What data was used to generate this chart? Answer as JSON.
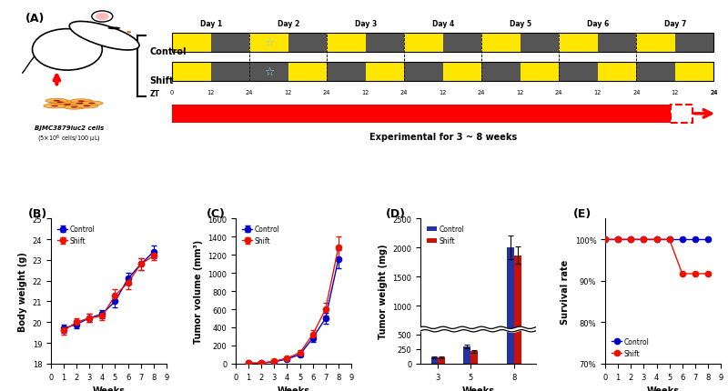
{
  "panel_A": {
    "days": [
      "Day 1",
      "Day 2",
      "Day 3",
      "Day 4",
      "Day 5",
      "Day 6",
      "Day 7"
    ],
    "exp_label": "Experimental for 3 ~ 8 weeks",
    "cell_label": "BJMC3879luc2 cells\n(5×10⁶ cells/100 μL)"
  },
  "panel_B": {
    "weeks_control": [
      1,
      2,
      3,
      4,
      5,
      6,
      7,
      8
    ],
    "control": [
      19.7,
      19.9,
      20.2,
      20.4,
      21.0,
      22.1,
      22.8,
      23.4
    ],
    "control_err": [
      0.2,
      0.2,
      0.2,
      0.2,
      0.3,
      0.3,
      0.3,
      0.3
    ],
    "weeks_shift": [
      1,
      2,
      3,
      4,
      5,
      6,
      7,
      8
    ],
    "shift": [
      19.6,
      20.0,
      20.2,
      20.3,
      21.3,
      21.9,
      22.8,
      23.2
    ],
    "shift_err": [
      0.2,
      0.2,
      0.2,
      0.2,
      0.3,
      0.3,
      0.3,
      0.2
    ],
    "ylabel": "Body weight (g)",
    "xlabel": "Weeks",
    "label": "(B)"
  },
  "panel_C": {
    "weeks": [
      1,
      2,
      3,
      4,
      5,
      6,
      7,
      8
    ],
    "control": [
      5,
      5,
      20,
      50,
      100,
      280,
      500,
      1150
    ],
    "control_err": [
      2,
      2,
      5,
      10,
      20,
      40,
      60,
      100
    ],
    "shift": [
      5,
      8,
      25,
      60,
      120,
      320,
      600,
      1280
    ],
    "shift_err": [
      2,
      2,
      8,
      15,
      25,
      50,
      70,
      120
    ],
    "ylabel": "Tumor volume (mm³)",
    "xlabel": "Weeks",
    "label": "(C)"
  },
  "panel_D": {
    "weeks": [
      3,
      5,
      8
    ],
    "control": [
      110,
      290,
      2000
    ],
    "control_err": [
      15,
      30,
      200
    ],
    "shift": [
      100,
      215,
      1870
    ],
    "shift_err": [
      15,
      25,
      150
    ],
    "ylabel": "Tumor weight (mg)",
    "xlabel": "Weeks",
    "label": "(D)"
  },
  "panel_E": {
    "weeks_control": [
      0,
      1,
      2,
      3,
      4,
      5,
      6,
      7,
      8
    ],
    "control": [
      100,
      100,
      100,
      100,
      100,
      100,
      100,
      100,
      100
    ],
    "weeks_shift": [
      0,
      1,
      2,
      3,
      4,
      5,
      6,
      7,
      8
    ],
    "shift": [
      100,
      100,
      100,
      100,
      100,
      100,
      91.7,
      91.7,
      91.7
    ],
    "ylabel": "Survival rate",
    "xlabel": "Weeks",
    "label": "(E)"
  },
  "colors": {
    "control": "#0000CD",
    "shift": "#EE1100",
    "yellow_block": "#FFE600",
    "dark_block": "#555555",
    "bar_control": "#2233AA",
    "bar_shift": "#CC1100"
  }
}
